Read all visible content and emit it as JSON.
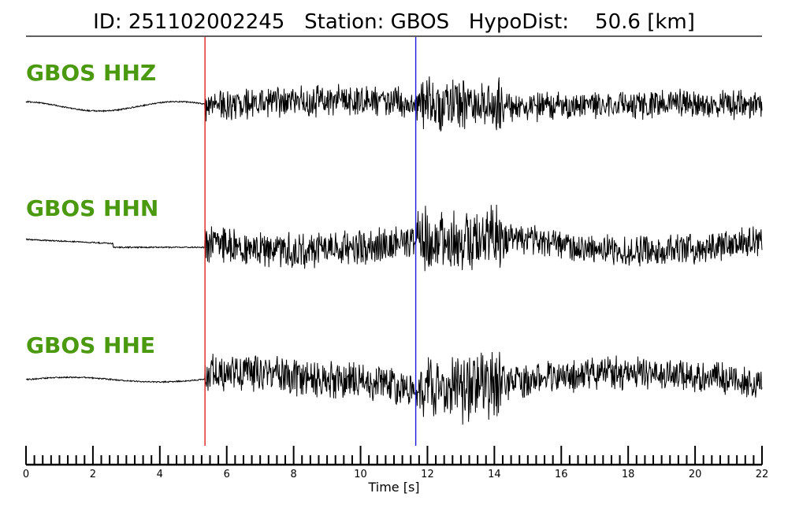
{
  "header": {
    "title": "ID: 251102002245   Station: GBOS   HypoDist:    50.6 [km]"
  },
  "colors": {
    "label": "#4a990f",
    "trace": "#000000",
    "p_pick": "#e02020",
    "s_pick": "#1a1adc"
  },
  "chart_data": {
    "type": "line",
    "title": "ID: 251102002245   Station: GBOS   HypoDist:    50.6 [km]",
    "xlabel": "Time [s]",
    "ylabel": "",
    "xlim": [
      0,
      22
    ],
    "x_ticks": [
      "0",
      "2",
      "4",
      "6",
      "8",
      "10",
      "12",
      "14",
      "16",
      "18",
      "20",
      "22"
    ],
    "minor_tick_step": 0.25,
    "picks": [
      {
        "time": 5.35,
        "color": "#e02020"
      },
      {
        "time": 11.65,
        "color": "#1a1adc"
      }
    ],
    "series": [
      {
        "name": "GBOS HHZ",
        "seed": 7
      },
      {
        "name": "GBOS HHN",
        "seed": 19
      },
      {
        "name": "GBOS HHE",
        "seed": 31
      }
    ],
    "grid": false,
    "legend": "none"
  }
}
